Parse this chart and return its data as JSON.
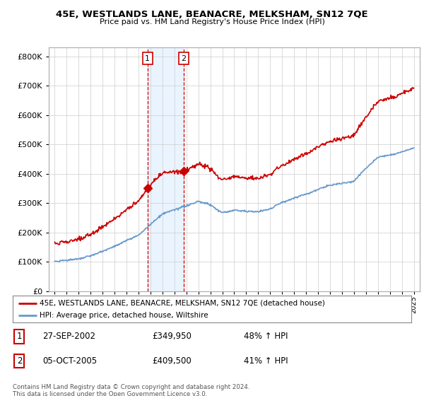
{
  "title": "45E, WESTLANDS LANE, BEANACRE, MELKSHAM, SN12 7QE",
  "subtitle": "Price paid vs. HM Land Registry's House Price Index (HPI)",
  "legend_label_red": "45E, WESTLANDS LANE, BEANACRE, MELKSHAM, SN12 7QE (detached house)",
  "legend_label_blue": "HPI: Average price, detached house, Wiltshire",
  "sale1_date": "27-SEP-2002",
  "sale1_price": "£349,950",
  "sale1_hpi": "48% ↑ HPI",
  "sale1_year": 2002.75,
  "sale2_date": "05-OCT-2005",
  "sale2_price": "£409,500",
  "sale2_hpi": "41% ↑ HPI",
  "sale2_year": 2005.77,
  "footer": "Contains HM Land Registry data © Crown copyright and database right 2024.\nThis data is licensed under the Open Government Licence v3.0.",
  "background_color": "#ffffff",
  "grid_color": "#cccccc",
  "red_color": "#cc0000",
  "blue_color": "#6699cc",
  "shade_color": "#ddeeff",
  "ylim": [
    0,
    830000
  ],
  "yticks": [
    0,
    100000,
    200000,
    300000,
    400000,
    500000,
    600000,
    700000,
    800000
  ]
}
